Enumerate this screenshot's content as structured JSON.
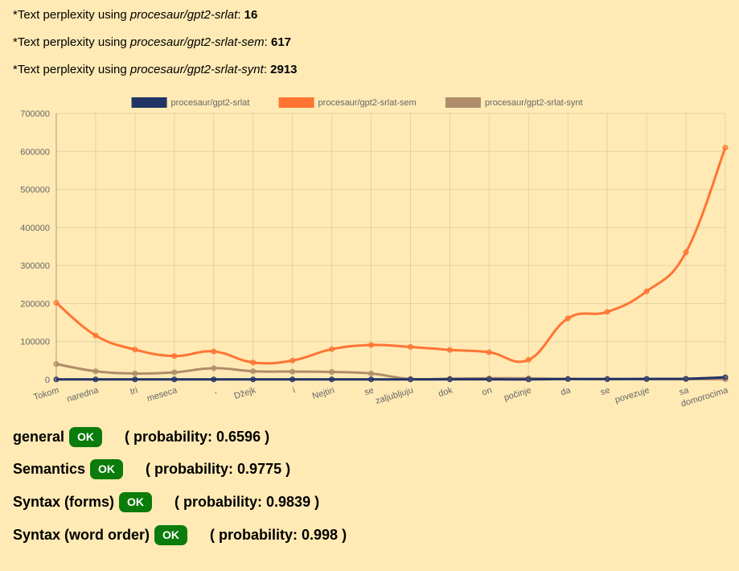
{
  "perplexity": [
    {
      "prefix": "*Text perplexity using ",
      "model": "procesaur/gpt2-srlat",
      "sep": ": ",
      "value": "16"
    },
    {
      "prefix": "*Text perplexity using ",
      "model": "procesaur/gpt2-srlat-sem",
      "sep": ": ",
      "value": "617"
    },
    {
      "prefix": "*Text perplexity using ",
      "model": "procesaur/gpt2-srlat-synt",
      "sep": ": ",
      "value": "2913"
    }
  ],
  "chart_data": {
    "type": "line",
    "categories": [
      "Tokom",
      "naredna",
      "tri",
      "meseca",
      ",",
      "Džejk",
      "i",
      "Nejtiri",
      "se",
      "zaljubljuju",
      "dok",
      "on",
      "počinje",
      "da",
      "se",
      "povezuje",
      "sa",
      "domorocima"
    ],
    "ylim": [
      0,
      700000
    ],
    "yticks": [
      0,
      100000,
      200000,
      300000,
      400000,
      500000,
      600000,
      700000
    ],
    "grid": true,
    "legend_position": "top",
    "series": [
      {
        "name": "procesaur/gpt2-srlat",
        "color": "#223366",
        "values": [
          500,
          500,
          500,
          500,
          500,
          500,
          500,
          500,
          500,
          500,
          800,
          800,
          500,
          1500,
          1500,
          1800,
          2200,
          6000
        ]
      },
      {
        "name": "procesaur/gpt2-srlat-sem",
        "color": "#ff7433",
        "values": [
          202000,
          116000,
          79000,
          62000,
          74000,
          45000,
          50000,
          80000,
          91000,
          86000,
          78000,
          72000,
          52000,
          161000,
          178000,
          232000,
          335000,
          610000
        ]
      },
      {
        "name": "procesaur/gpt2-srlat-synt",
        "color": "#b08c6a",
        "values": [
          41000,
          22000,
          16000,
          19000,
          30000,
          22000,
          21000,
          20000,
          16000,
          1500,
          2500,
          3500,
          3500,
          1500,
          1000,
          1000,
          1000,
          1000
        ]
      }
    ]
  },
  "results": [
    {
      "label": "general",
      "badge": "OK",
      "prob": "( probability: 0.6596 )"
    },
    {
      "label": "Semantics",
      "badge": "OK",
      "prob": "( probability: 0.9775 )"
    },
    {
      "label": "Syntax (forms)",
      "badge": "OK",
      "prob": "( probability: 0.9839 )"
    },
    {
      "label": "Syntax (word order)",
      "badge": "OK",
      "prob": "( probability: 0.998 )"
    }
  ]
}
